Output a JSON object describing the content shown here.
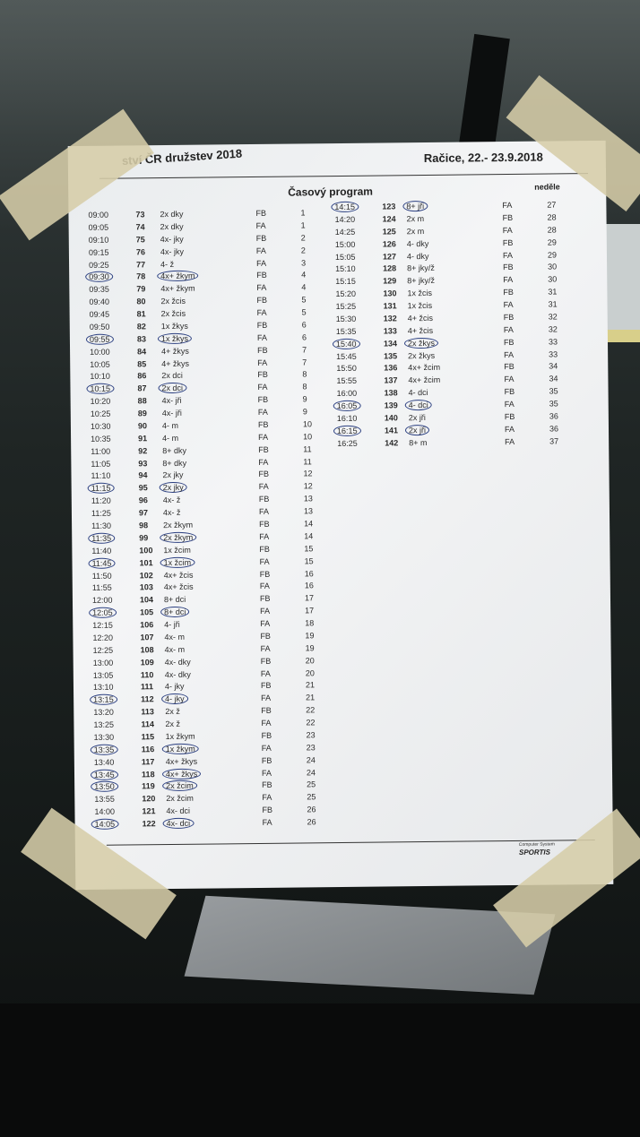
{
  "header": {
    "competition": "ství ČR družstev 2018",
    "place_date": "Račice, 22.- 23.9.2018",
    "title": "Časový program",
    "day": "neděle"
  },
  "footer": {
    "system": "Computer System",
    "brand": "SPORTIS"
  },
  "columns": [
    "time",
    "race_number",
    "event",
    "final",
    "order"
  ],
  "ink_color": "#2b3f80",
  "left_rows": [
    {
      "time": "09:00",
      "num": "73",
      "event": "2x dky",
      "final": "FB",
      "order": "1",
      "circled": false
    },
    {
      "time": "09:05",
      "num": "74",
      "event": "2x dky",
      "final": "FA",
      "order": "1",
      "circled": false
    },
    {
      "time": "09:10",
      "num": "75",
      "event": "4x- jky",
      "final": "FB",
      "order": "2",
      "circled": false
    },
    {
      "time": "09:15",
      "num": "76",
      "event": "4x- jky",
      "final": "FA",
      "order": "2",
      "circled": false
    },
    {
      "time": "09:25",
      "num": "77",
      "event": "4- ž",
      "final": "FA",
      "order": "3",
      "circled": false
    },
    {
      "time": "09:30",
      "num": "78",
      "event": "4x+ žkym",
      "final": "FB",
      "order": "4",
      "circled": true
    },
    {
      "time": "09:35",
      "num": "79",
      "event": "4x+ žkym",
      "final": "FA",
      "order": "4",
      "circled": false
    },
    {
      "time": "09:40",
      "num": "80",
      "event": "2x žcis",
      "final": "FB",
      "order": "5",
      "circled": false
    },
    {
      "time": "09:45",
      "num": "81",
      "event": "2x žcis",
      "final": "FA",
      "order": "5",
      "circled": false
    },
    {
      "time": "09:50",
      "num": "82",
      "event": "1x žkys",
      "final": "FB",
      "order": "6",
      "circled": false
    },
    {
      "time": "09:55",
      "num": "83",
      "event": "1x žkys",
      "final": "FA",
      "order": "6",
      "circled": true
    },
    {
      "time": "10:00",
      "num": "84",
      "event": "4+ žkys",
      "final": "FB",
      "order": "7",
      "circled": false
    },
    {
      "time": "10:05",
      "num": "85",
      "event": "4+ žkys",
      "final": "FA",
      "order": "7",
      "circled": false
    },
    {
      "time": "10:10",
      "num": "86",
      "event": "2x dci",
      "final": "FB",
      "order": "8",
      "circled": false
    },
    {
      "time": "10:15",
      "num": "87",
      "event": "2x dci",
      "final": "FA",
      "order": "8",
      "circled": true
    },
    {
      "time": "10:20",
      "num": "88",
      "event": "4x- jři",
      "final": "FB",
      "order": "9",
      "circled": false
    },
    {
      "time": "10:25",
      "num": "89",
      "event": "4x- jři",
      "final": "FA",
      "order": "9",
      "circled": false
    },
    {
      "time": "10:30",
      "num": "90",
      "event": "4- m",
      "final": "FB",
      "order": "10",
      "circled": false
    },
    {
      "time": "10:35",
      "num": "91",
      "event": "4- m",
      "final": "FA",
      "order": "10",
      "circled": false
    },
    {
      "time": "11:00",
      "num": "92",
      "event": "8+ dky",
      "final": "FB",
      "order": "11",
      "circled": false
    },
    {
      "time": "11:05",
      "num": "93",
      "event": "8+ dky",
      "final": "FA",
      "order": "11",
      "circled": false
    },
    {
      "time": "11:10",
      "num": "94",
      "event": "2x jky",
      "final": "FB",
      "order": "12",
      "circled": false
    },
    {
      "time": "11:15",
      "num": "95",
      "event": "2x jky",
      "final": "FA",
      "order": "12",
      "circled": true
    },
    {
      "time": "11:20",
      "num": "96",
      "event": "4x- ž",
      "final": "FB",
      "order": "13",
      "circled": false
    },
    {
      "time": "11:25",
      "num": "97",
      "event": "4x- ž",
      "final": "FA",
      "order": "13",
      "circled": false
    },
    {
      "time": "11:30",
      "num": "98",
      "event": "2x žkym",
      "final": "FB",
      "order": "14",
      "circled": false
    },
    {
      "time": "11:35",
      "num": "99",
      "event": "2x žkym",
      "final": "FA",
      "order": "14",
      "circled": true
    },
    {
      "time": "11:40",
      "num": "100",
      "event": "1x žcim",
      "final": "FB",
      "order": "15",
      "circled": false
    },
    {
      "time": "11:45",
      "num": "101",
      "event": "1x žcim",
      "final": "FA",
      "order": "15",
      "circled": true
    },
    {
      "time": "11:50",
      "num": "102",
      "event": "4x+ žcis",
      "final": "FB",
      "order": "16",
      "circled": false
    },
    {
      "time": "11:55",
      "num": "103",
      "event": "4x+ žcis",
      "final": "FA",
      "order": "16",
      "circled": false
    },
    {
      "time": "12:00",
      "num": "104",
      "event": "8+ dci",
      "final": "FB",
      "order": "17",
      "circled": false
    },
    {
      "time": "12:05",
      "num": "105",
      "event": "8+ dci",
      "final": "FA",
      "order": "17",
      "circled": true
    },
    {
      "time": "12:15",
      "num": "106",
      "event": "4- jři",
      "final": "FA",
      "order": "18",
      "circled": false
    },
    {
      "time": "12:20",
      "num": "107",
      "event": "4x- m",
      "final": "FB",
      "order": "19",
      "circled": false
    },
    {
      "time": "12:25",
      "num": "108",
      "event": "4x- m",
      "final": "FA",
      "order": "19",
      "circled": false
    },
    {
      "time": "13:00",
      "num": "109",
      "event": "4x- dky",
      "final": "FB",
      "order": "20",
      "circled": false
    },
    {
      "time": "13:05",
      "num": "110",
      "event": "4x- dky",
      "final": "FA",
      "order": "20",
      "circled": false
    },
    {
      "time": "13:10",
      "num": "111",
      "event": "4- jky",
      "final": "FB",
      "order": "21",
      "circled": false
    },
    {
      "time": "13:15",
      "num": "112",
      "event": "4- jky",
      "final": "FA",
      "order": "21",
      "circled": true
    },
    {
      "time": "13:20",
      "num": "113",
      "event": "2x ž",
      "final": "FB",
      "order": "22",
      "circled": false
    },
    {
      "time": "13:25",
      "num": "114",
      "event": "2x ž",
      "final": "FA",
      "order": "22",
      "circled": false
    },
    {
      "time": "13:30",
      "num": "115",
      "event": "1x žkym",
      "final": "FB",
      "order": "23",
      "circled": false
    },
    {
      "time": "13:35",
      "num": "116",
      "event": "1x žkym",
      "final": "FA",
      "order": "23",
      "circled": true
    },
    {
      "time": "13:40",
      "num": "117",
      "event": "4x+ žkys",
      "final": "FB",
      "order": "24",
      "circled": false
    },
    {
      "time": "13:45",
      "num": "118",
      "event": "4x+ žkys",
      "final": "FA",
      "order": "24",
      "circled": true
    },
    {
      "time": "13:50",
      "num": "119",
      "event": "2x žcim",
      "final": "FB",
      "order": "25",
      "circled": true
    },
    {
      "time": "13:55",
      "num": "120",
      "event": "2x žcim",
      "final": "FA",
      "order": "25",
      "circled": false
    },
    {
      "time": "14:00",
      "num": "121",
      "event": "4x- dci",
      "final": "FB",
      "order": "26",
      "circled": false
    },
    {
      "time": "14:05",
      "num": "122",
      "event": "4x- dci",
      "final": "FA",
      "order": "26",
      "circled": true
    }
  ],
  "right_rows": [
    {
      "time": "14:15",
      "num": "123",
      "event": "8+ jři",
      "final": "FA",
      "order": "27",
      "circled": true
    },
    {
      "time": "14:20",
      "num": "124",
      "event": "2x m",
      "final": "FB",
      "order": "28",
      "circled": false
    },
    {
      "time": "14:25",
      "num": "125",
      "event": "2x m",
      "final": "FA",
      "order": "28",
      "circled": false
    },
    {
      "time": "15:00",
      "num": "126",
      "event": "4- dky",
      "final": "FB",
      "order": "29",
      "circled": false
    },
    {
      "time": "15:05",
      "num": "127",
      "event": "4- dky",
      "final": "FA",
      "order": "29",
      "circled": false
    },
    {
      "time": "15:10",
      "num": "128",
      "event": "8+ jky/ž",
      "final": "FB",
      "order": "30",
      "circled": false
    },
    {
      "time": "15:15",
      "num": "129",
      "event": "8+ jky/ž",
      "final": "FA",
      "order": "30",
      "circled": false
    },
    {
      "time": "15:20",
      "num": "130",
      "event": "1x žcis",
      "final": "FB",
      "order": "31",
      "circled": false
    },
    {
      "time": "15:25",
      "num": "131",
      "event": "1x žcis",
      "final": "FA",
      "order": "31",
      "circled": false
    },
    {
      "time": "15:30",
      "num": "132",
      "event": "4+ žcis",
      "final": "FB",
      "order": "32",
      "circled": false
    },
    {
      "time": "15:35",
      "num": "133",
      "event": "4+ žcis",
      "final": "FA",
      "order": "32",
      "circled": false
    },
    {
      "time": "15:40",
      "num": "134",
      "event": "2x žkys",
      "final": "FB",
      "order": "33",
      "circled": true
    },
    {
      "time": "15:45",
      "num": "135",
      "event": "2x žkys",
      "final": "FA",
      "order": "33",
      "circled": false
    },
    {
      "time": "15:50",
      "num": "136",
      "event": "4x+ žcim",
      "final": "FB",
      "order": "34",
      "circled": false
    },
    {
      "time": "15:55",
      "num": "137",
      "event": "4x+ žcim",
      "final": "FA",
      "order": "34",
      "circled": false
    },
    {
      "time": "16:00",
      "num": "138",
      "event": "4- dci",
      "final": "FB",
      "order": "35",
      "circled": false
    },
    {
      "time": "16:05",
      "num": "139",
      "event": "4- dci",
      "final": "FA",
      "order": "35",
      "circled": true
    },
    {
      "time": "16:10",
      "num": "140",
      "event": "2x jři",
      "final": "FB",
      "order": "36",
      "circled": false
    },
    {
      "time": "16:15",
      "num": "141",
      "event": "2x jři",
      "final": "FA",
      "order": "36",
      "circled": true
    },
    {
      "time": "16:25",
      "num": "142",
      "event": "8+ m",
      "final": "FA",
      "order": "37",
      "circled": false
    }
  ]
}
